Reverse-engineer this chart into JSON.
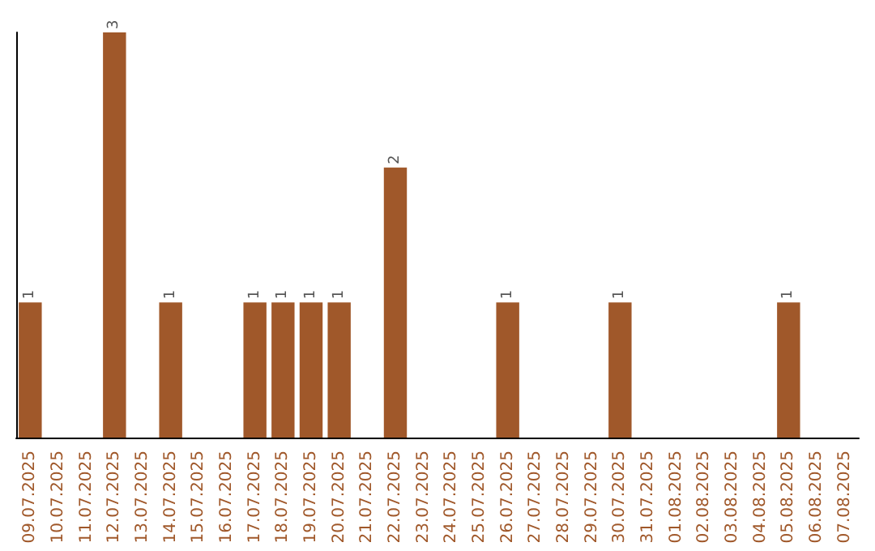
{
  "chart_data": {
    "type": "bar",
    "categories": [
      "09.07.2025",
      "10.07.2025",
      "11.07.2025",
      "12.07.2025",
      "13.07.2025",
      "14.07.2025",
      "15.07.2025",
      "16.07.2025",
      "17.07.2025",
      "18.07.2025",
      "19.07.2025",
      "20.07.2025",
      "21.07.2025",
      "22.07.2025",
      "23.07.2025",
      "24.07.2025",
      "25.07.2025",
      "26.07.2025",
      "27.07.2025",
      "28.07.2025",
      "29.07.2025",
      "30.07.2025",
      "31.07.2025",
      "01.08.2025",
      "02.08.2025",
      "03.08.2025",
      "04.08.2025",
      "05.08.2025",
      "06.08.2025",
      "07.08.2025"
    ],
    "values": [
      1,
      0,
      0,
      3,
      0,
      1,
      0,
      0,
      1,
      1,
      1,
      1,
      0,
      2,
      0,
      0,
      0,
      1,
      0,
      0,
      0,
      1,
      0,
      0,
      0,
      0,
      0,
      1,
      0,
      0
    ],
    "value_labels": [
      "1",
      null,
      null,
      "3",
      null,
      "1",
      null,
      null,
      "1",
      "1",
      "1",
      "1",
      null,
      "2",
      null,
      null,
      null,
      "1",
      null,
      null,
      null,
      "1",
      null,
      null,
      null,
      null,
      null,
      "1",
      null,
      null
    ],
    "color": "#a0582a",
    "ylim": [
      0,
      3
    ],
    "tick_labels": "x"
  }
}
